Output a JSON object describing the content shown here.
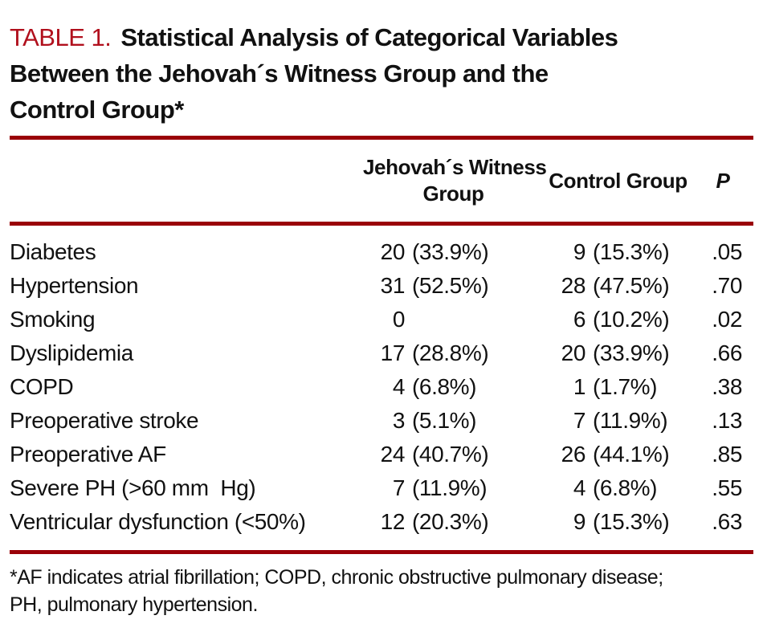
{
  "title": {
    "label": "TABLE 1.",
    "lines": [
      "Statistical Analysis of Categorical Variables",
      "Between the Jehovah´s Witness Group and the",
      "Control Group*"
    ]
  },
  "header": {
    "jw_lines": [
      "Jehovah´s Witness",
      "Group"
    ],
    "control": "Control Group",
    "p": "P"
  },
  "rows": [
    {
      "variable": "Diabetes",
      "jw_n": "20",
      "jw_pct": "(33.9%)",
      "control_n": "9",
      "control_pct": "(15.3%)",
      "p": ".05"
    },
    {
      "variable": "Hypertension",
      "jw_n": "31",
      "jw_pct": "(52.5%)",
      "control_n": "28",
      "control_pct": "(47.5%)",
      "p": ".70"
    },
    {
      "variable": "Smoking",
      "jw_n": "0",
      "jw_pct": "",
      "control_n": "6",
      "control_pct": "(10.2%)",
      "p": ".02"
    },
    {
      "variable": "Dyslipidemia",
      "jw_n": "17",
      "jw_pct": "(28.8%)",
      "control_n": "20",
      "control_pct": "(33.9%)",
      "p": ".66"
    },
    {
      "variable": "COPD",
      "jw_n": "4",
      "jw_pct": "(6.8%)",
      "control_n": "1",
      "control_pct": "(1.7%)",
      "p": ".38"
    },
    {
      "variable": "Preoperative stroke",
      "jw_n": "3",
      "jw_pct": "(5.1%)",
      "control_n": "7",
      "control_pct": "(11.9%)",
      "p": ".13"
    },
    {
      "variable": "Preoperative AF",
      "jw_n": "24",
      "jw_pct": "(40.7%)",
      "control_n": "26",
      "control_pct": "(44.1%)",
      "p": ".85"
    },
    {
      "variable": "Severe PH (>60 mm  Hg)",
      "jw_n": "7",
      "jw_pct": "(11.9%)",
      "control_n": "4",
      "control_pct": "(6.8%)",
      "p": ".55"
    },
    {
      "variable": "Ventricular dysfunction (<50%)",
      "jw_n": "12",
      "jw_pct": "(20.3%)",
      "control_n": "9",
      "control_pct": "(15.3%)",
      "p": ".63"
    }
  ],
  "footnote": {
    "lines": [
      "*AF indicates atrial fibrillation; COPD, chronic obstructive pulmonary disease;",
      "PH, pulmonary hypertension."
    ]
  },
  "colors": {
    "title_label_red": "#b1101d",
    "rule_red": "#9a0008",
    "text": "#111111"
  }
}
